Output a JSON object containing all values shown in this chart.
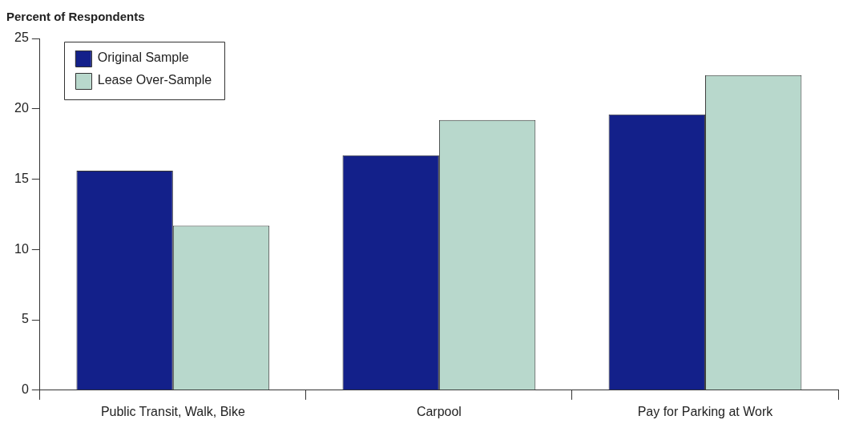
{
  "chart_data": {
    "type": "bar",
    "ylabel": "Percent of Respondents",
    "categories": [
      "Public Transit, Walk, Bike",
      "Carpool",
      "Pay for Parking at Work"
    ],
    "series": [
      {
        "name": "Original Sample",
        "color": "#13208a",
        "values": [
          15.6,
          16.7,
          19.6
        ]
      },
      {
        "name": "Lease Over-Sample",
        "color": "#b8d8cc",
        "values": [
          11.7,
          19.2,
          22.4
        ]
      }
    ],
    "ylim": [
      0,
      25
    ],
    "yticks": [
      0,
      5,
      10,
      15,
      20,
      25
    ],
    "grid": false,
    "legend": "top left"
  }
}
